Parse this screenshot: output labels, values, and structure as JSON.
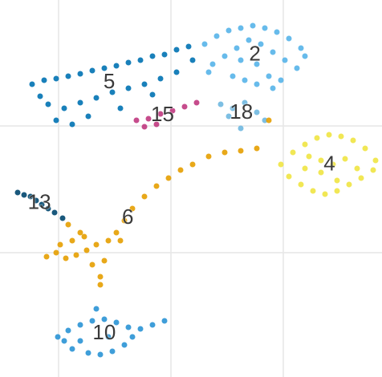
{
  "chart_data": {
    "type": "scatter",
    "xlim": [
      0,
      476
    ],
    "ylim": [
      470,
      0
    ],
    "xticks": [
      73,
      213,
      353
    ],
    "yticks": [
      157,
      315
    ],
    "grid": true,
    "series": [
      {
        "name": "2",
        "color": "#56b4e9",
        "x": [
          255,
          270,
          285,
          300,
          315,
          330,
          345,
          360,
          375,
          265,
          280,
          295,
          310,
          325,
          340,
          355,
          370,
          290,
          305,
          320,
          335,
          350,
          300,
          320,
          340,
          260,
          380
        ],
        "values": [
          55,
          45,
          38,
          35,
          32,
          35,
          40,
          48,
          60,
          80,
          70,
          60,
          50,
          55,
          65,
          75,
          85,
          95,
          100,
          105,
          95,
          100,
          75,
          80,
          110,
          90,
          70
        ]
      },
      {
        "name": "5",
        "color": "#0072b2",
        "x": [
          40,
          55,
          70,
          85,
          100,
          115,
          130,
          145,
          160,
          175,
          190,
          205,
          220,
          235,
          60,
          80,
          100,
          120,
          140,
          160,
          180,
          200,
          220,
          70,
          90,
          50,
          110,
          150,
          190,
          240
        ],
        "values": [
          105,
          100,
          98,
          95,
          92,
          88,
          85,
          82,
          78,
          75,
          70,
          68,
          62,
          58,
          130,
          135,
          128,
          122,
          115,
          110,
          105,
          98,
          90,
          150,
          155,
          120,
          145,
          135,
          118,
          75
        ]
      },
      {
        "name": "15",
        "color": "#c0397f",
        "x": [
          170,
          185,
          200,
          215,
          230,
          245,
          180,
          195
        ],
        "values": [
          150,
          148,
          142,
          138,
          133,
          128,
          158,
          155
        ]
      },
      {
        "name": "18",
        "color": "#6fb8e0",
        "x": [
          275,
          290,
          305,
          320,
          330,
          300,
          285
        ],
        "values": [
          130,
          135,
          128,
          140,
          150,
          160,
          145
        ]
      },
      {
        "name": "4",
        "color": "#f0e442",
        "x": [
          350,
          365,
          380,
          395,
          410,
          425,
          440,
          455,
          468,
          360,
          375,
          390,
          405,
          420,
          435,
          450,
          465,
          385,
          400,
          415,
          430,
          445,
          400,
          420,
          380
        ],
        "values": [
          205,
          190,
          180,
          172,
          168,
          170,
          175,
          185,
          200,
          220,
          230,
          238,
          242,
          238,
          230,
          222,
          212,
          195,
          200,
          205,
          198,
          210,
          215,
          225,
          210
        ]
      },
      {
        "name": "13",
        "color": "#00466e",
        "x": [
          22,
          30,
          38,
          45,
          52,
          60,
          68,
          78
        ],
        "values": [
          240,
          243,
          245,
          250,
          255,
          260,
          265,
          272
        ]
      },
      {
        "name": "6",
        "color": "#e69f00",
        "x": [
          58,
          70,
          82,
          95,
          108,
          120,
          75,
          90,
          105,
          115,
          125,
          135,
          145,
          155,
          165,
          180,
          195,
          210,
          225,
          240,
          260,
          280,
          300,
          320,
          335,
          125,
          130,
          100,
          85,
          150
        ],
        "values": [
          320,
          315,
          322,
          318,
          312,
          305,
          305,
          300,
          295,
          330,
          345,
          300,
          290,
          275,
          260,
          245,
          232,
          222,
          212,
          205,
          195,
          190,
          188,
          185,
          150,
          355,
          325,
          290,
          280,
          300
        ]
      },
      {
        "name": "10",
        "color": "#2a93d5",
        "x": [
          72,
          85,
          100,
          115,
          130,
          145,
          160,
          175,
          190,
          205,
          90,
          110,
          125,
          140,
          155,
          120,
          100,
          135,
          80,
          165
        ],
        "values": [
          420,
          412,
          405,
          400,
          398,
          402,
          408,
          410,
          405,
          400,
          435,
          440,
          442,
          438,
          430,
          385,
          425,
          420,
          425,
          420
        ]
      }
    ]
  }
}
